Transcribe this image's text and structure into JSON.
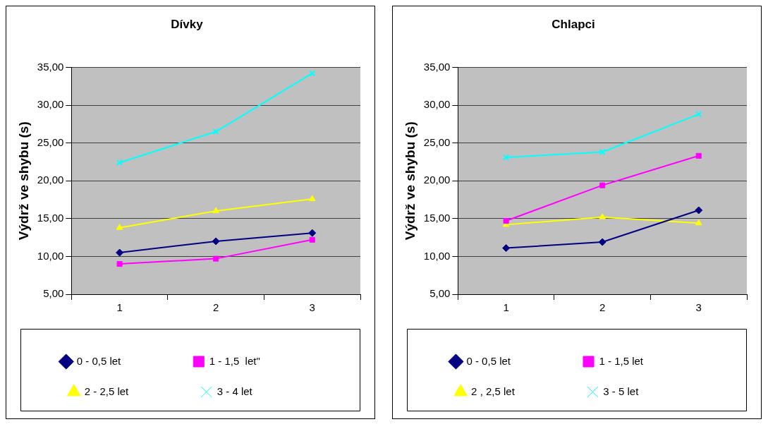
{
  "chart_data": [
    {
      "type": "line",
      "title": "Dívky",
      "ylabel": "Výdrž ve shybu (s)",
      "categories": [
        "1",
        "2",
        "3"
      ],
      "ylim": [
        5,
        35
      ],
      "yticks": [
        {
          "value": 5,
          "label": "5,00"
        },
        {
          "value": 10,
          "label": "10,00"
        },
        {
          "value": 15,
          "label": "15,00"
        },
        {
          "value": 20,
          "label": "20,00"
        },
        {
          "value": 25,
          "label": "25,00"
        },
        {
          "value": 30,
          "label": "30,00"
        },
        {
          "value": 35,
          "label": "35,00"
        }
      ],
      "grid": "y",
      "legend": "bottom",
      "series": [
        {
          "name": "0 - 0,5 let",
          "color": "#000080",
          "marker": "diamond",
          "values": [
            10.5,
            12.0,
            13.1
          ]
        },
        {
          "name": "1 - 1,5  let\"",
          "color": "#ff00ff",
          "marker": "square",
          "values": [
            9.0,
            9.7,
            12.2
          ]
        },
        {
          "name": "2 - 2,5 let",
          "color": "#ffff00",
          "marker": "triangle",
          "values": [
            13.8,
            16.0,
            17.6
          ]
        },
        {
          "name": "3 - 4 let",
          "color": "#00ffff",
          "marker": "cross",
          "values": [
            22.4,
            26.5,
            34.2
          ]
        }
      ]
    },
    {
      "type": "line",
      "title": "Chlapci",
      "ylabel": "Výdrž ve shybu (s)",
      "categories": [
        "1",
        "2",
        "3"
      ],
      "ylim": [
        5,
        35
      ],
      "yticks": [
        {
          "value": 5,
          "label": "5,00"
        },
        {
          "value": 10,
          "label": "10,00"
        },
        {
          "value": 15,
          "label": "15,00"
        },
        {
          "value": 20,
          "label": "20,00"
        },
        {
          "value": 25,
          "label": "25,00"
        },
        {
          "value": 30,
          "label": "30,00"
        },
        {
          "value": 35,
          "label": "35,00"
        }
      ],
      "grid": "y",
      "legend": "bottom",
      "series": [
        {
          "name": "0 - 0,5 let",
          "color": "#000080",
          "marker": "diamond",
          "values": [
            11.1,
            11.9,
            16.1
          ]
        },
        {
          "name": "1 - 1,5 let",
          "color": "#ff00ff",
          "marker": "square",
          "values": [
            14.7,
            19.4,
            23.3
          ]
        },
        {
          "name": "2 , 2,5 let",
          "color": "#ffff00",
          "marker": "triangle",
          "values": [
            14.2,
            15.2,
            14.4
          ]
        },
        {
          "name": "3 - 5 let",
          "color": "#00ffff",
          "marker": "cross",
          "values": [
            23.1,
            23.8,
            28.8
          ]
        }
      ]
    }
  ]
}
